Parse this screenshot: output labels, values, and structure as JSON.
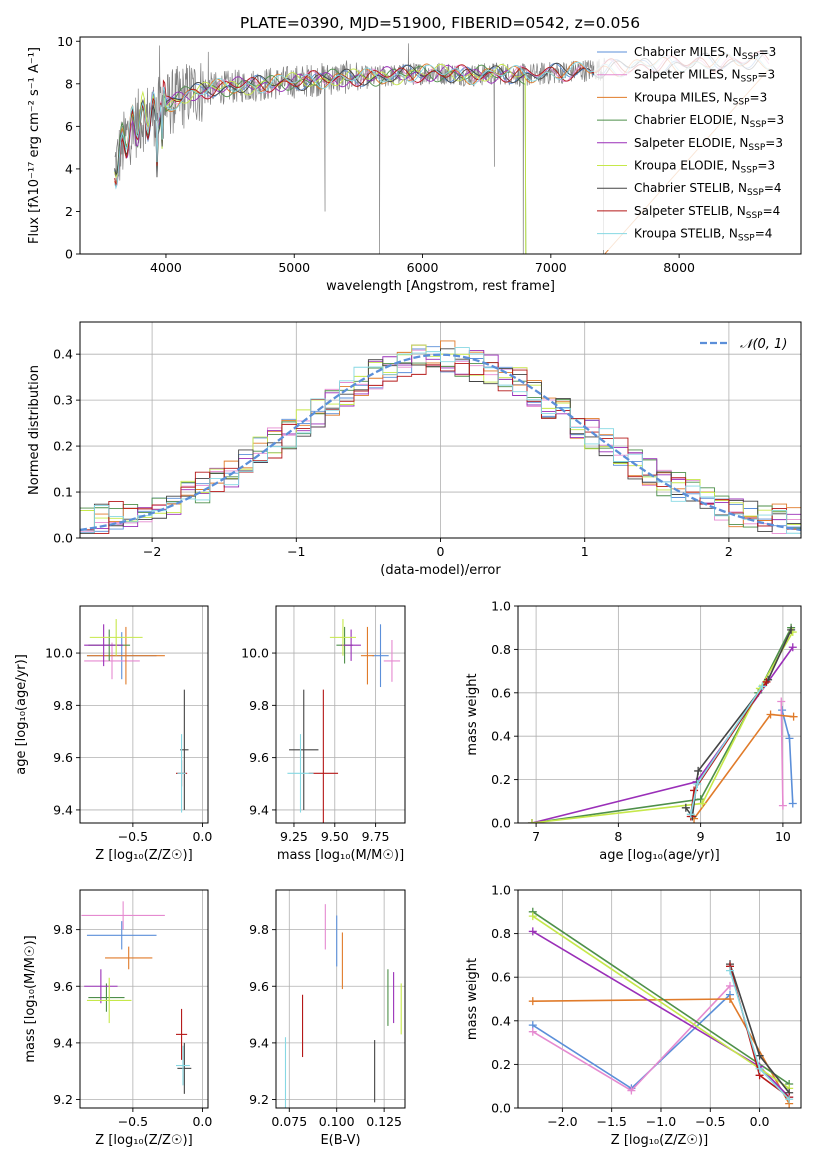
{
  "title": "PLATE=0390, MJD=51900, FIBERID=0542, z=0.056",
  "colors": {
    "Chabrier MILES": "#5b8fd9",
    "Salpeter MILES": "#e58ad0",
    "Kroupa MILES": "#e07b2a",
    "Chabrier ELODIE": "#4e8f4a",
    "Salpeter ELODIE": "#9a2fb8",
    "Kroupa ELODIE": "#c6e84a",
    "Chabrier STELIB": "#444444",
    "Salpeter STELIB": "#b51818",
    "Kroupa STELIB": "#86d8e3",
    "normal": "#5b8fd9"
  },
  "chart_data": [
    {
      "id": "spectrum",
      "type": "line",
      "xlabel": "wavelength [Angstrom, rest frame]",
      "ylabel": "Flux [fλ10⁻¹⁷ erg cm⁻² s⁻¹ A⁻¹]",
      "xlim": [
        3330,
        8950
      ],
      "ylim": [
        0,
        10.2
      ],
      "xticks": [
        4000,
        5000,
        6000,
        7000,
        8000
      ],
      "yticks": [
        0,
        2,
        4,
        6,
        8,
        10
      ],
      "legend": "top-right",
      "legend_entries": [
        {
          "series": "Chabrier MILES",
          "label": "Chabrier MILES, N",
          "sub": "SSP",
          "rest": "=3"
        },
        {
          "series": "Salpeter MILES",
          "label": "Salpeter MILES, N",
          "sub": "SSP",
          "rest": "=3"
        },
        {
          "series": "Kroupa MILES",
          "label": "Kroupa MILES, N",
          "sub": "SSP",
          "rest": "=3"
        },
        {
          "series": "Chabrier ELODIE",
          "label": "Chabrier ELODIE, N",
          "sub": "SSP",
          "rest": "=3"
        },
        {
          "series": "Salpeter ELODIE",
          "label": "Salpeter ELODIE, N",
          "sub": "SSP",
          "rest": "=3"
        },
        {
          "series": "Kroupa ELODIE",
          "label": "Kroupa ELODIE, N",
          "sub": "SSP",
          "rest": "=3"
        },
        {
          "series": "Chabrier STELIB",
          "label": "Chabrier STELIB, N",
          "sub": "SSP",
          "rest": "=4"
        },
        {
          "series": "Salpeter STELIB",
          "label": "Salpeter STELIB, N",
          "sub": "SSP",
          "rest": "=4"
        },
        {
          "series": "Kroupa STELIB",
          "label": "Kroupa STELIB, N",
          "sub": "SSP",
          "rest": "=4"
        }
      ],
      "data_anchor": {
        "x": [
          3600,
          3700,
          3800,
          3900,
          4000,
          4100,
          4200,
          4400,
          4600,
          4800,
          5000,
          5200,
          5400,
          5600,
          5800,
          6000,
          6200,
          6400,
          6600,
          6800,
          7000,
          7200,
          7400,
          7600,
          7800,
          8000,
          8200,
          8400,
          8600,
          8800
        ],
        "y": [
          4.1,
          5.6,
          6.3,
          6.6,
          7.0,
          7.3,
          7.6,
          7.8,
          7.9,
          8.0,
          8.1,
          8.2,
          8.3,
          8.3,
          8.4,
          8.5,
          8.5,
          8.4,
          8.5,
          8.4,
          8.5,
          8.6,
          8.7,
          8.8,
          8.9,
          8.9,
          9.0,
          9.0,
          9.1,
          9.1
        ]
      }
    },
    {
      "id": "residuals",
      "type": "line",
      "xlabel": "(data-model)/error",
      "ylabel": "Normed distribution",
      "xlim": [
        -2.5,
        2.5
      ],
      "ylim": [
        0,
        0.47
      ],
      "xticks": [
        -2,
        -1,
        0,
        1,
        2
      ],
      "yticks": [
        0.0,
        0.1,
        0.2,
        0.3,
        0.4
      ],
      "grid": true,
      "legend": "top-right",
      "legend_label": "𝒩(0, 1)",
      "bin_width": 0.1,
      "histogram_envelope": {
        "x": [
          -2.5,
          -2.0,
          -1.5,
          -1.0,
          -0.5,
          0.0,
          0.5,
          1.0,
          1.5,
          2.0,
          2.5
        ],
        "y": [
          0.03,
          0.06,
          0.13,
          0.24,
          0.35,
          0.4,
          0.35,
          0.24,
          0.13,
          0.06,
          0.03
        ]
      }
    },
    {
      "id": "age-vs-Z",
      "type": "scatter",
      "xlabel": "Z [log₁₀(Z/Z☉)]",
      "ylabel": "age  [log₁₀(age/yr)]",
      "xlim": [
        -0.88,
        0.04
      ],
      "ylim": [
        9.35,
        10.18
      ],
      "xticks": [
        -0.5,
        0.0
      ],
      "yticks": [
        9.4,
        9.6,
        9.8,
        10.0
      ],
      "grid": true,
      "points": [
        {
          "series": "Chabrier MILES",
          "x": -0.58,
          "xerr": 0.25,
          "y": 9.99,
          "yerr": 0.09
        },
        {
          "series": "Salpeter MILES",
          "x": -0.65,
          "xerr": 0.2,
          "y": 9.97,
          "yerr": 0.07
        },
        {
          "series": "Kroupa MILES",
          "x": -0.55,
          "xerr": 0.28,
          "y": 9.99,
          "yerr": 0.11
        },
        {
          "series": "Chabrier ELODIE",
          "x": -0.67,
          "xerr": 0.15,
          "y": 10.03,
          "yerr": 0.06
        },
        {
          "series": "Salpeter ELODIE",
          "x": -0.71,
          "xerr": 0.14,
          "y": 10.03,
          "yerr": 0.08
        },
        {
          "series": "Kroupa ELODIE",
          "x": -0.62,
          "xerr": 0.19,
          "y": 10.06,
          "yerr": 0.07
        },
        {
          "series": "Chabrier STELIB",
          "x": -0.13,
          "xerr": 0.03,
          "y": 9.63,
          "yerr": 0.23
        },
        {
          "series": "Salpeter STELIB",
          "x": -0.15,
          "xerr": 0.04,
          "y": 9.54,
          "yerr": 0.05
        },
        {
          "series": "Kroupa STELIB",
          "x": -0.15,
          "xerr": 0.03,
          "y": 9.54,
          "yerr": 0.15
        }
      ]
    },
    {
      "id": "age-vs-mass",
      "type": "scatter",
      "xlabel": "mass [log₁₀(M/M☉)]",
      "ylabel": "",
      "xlim": [
        9.14,
        9.93
      ],
      "ylim": [
        9.35,
        10.18
      ],
      "xticks": [
        9.25,
        9.5,
        9.75
      ],
      "yticks": [
        9.4,
        9.6,
        9.8,
        10.0
      ],
      "grid": true,
      "points": [
        {
          "series": "Chabrier MILES",
          "x": 9.78,
          "xerr": 0.05,
          "y": 9.99,
          "yerr": 0.12
        },
        {
          "series": "Salpeter MILES",
          "x": 9.85,
          "xerr": 0.05,
          "y": 9.97,
          "yerr": 0.08
        },
        {
          "series": "Kroupa MILES",
          "x": 9.7,
          "xerr": 0.04,
          "y": 9.99,
          "yerr": 0.11
        },
        {
          "series": "Chabrier ELODIE",
          "x": 9.56,
          "xerr": 0.05,
          "y": 10.03,
          "yerr": 0.07
        },
        {
          "series": "Salpeter ELODIE",
          "x": 9.6,
          "xerr": 0.06,
          "y": 10.03,
          "yerr": 0.06
        },
        {
          "series": "Kroupa ELODIE",
          "x": 9.55,
          "xerr": 0.08,
          "y": 10.06,
          "yerr": 0.07
        },
        {
          "series": "Chabrier STELIB",
          "x": 9.31,
          "xerr": 0.09,
          "y": 9.63,
          "yerr": 0.23
        },
        {
          "series": "Salpeter STELIB",
          "x": 9.43,
          "xerr": 0.09,
          "y": 9.54,
          "yerr": 0.32
        },
        {
          "series": "Kroupa STELIB",
          "x": 9.29,
          "xerr": 0.08,
          "y": 9.54,
          "yerr": 0.15
        }
      ]
    },
    {
      "id": "mass-weight-vs-age",
      "type": "line",
      "xlabel": "age  [log₁₀(age/yr)]",
      "ylabel": "mass weight",
      "xlim": [
        6.78,
        10.22
      ],
      "ylim": [
        0.0,
        1.0
      ],
      "xticks": [
        7,
        8,
        9,
        10
      ],
      "yticks": [
        0.0,
        0.2,
        0.4,
        0.6,
        0.8,
        1.0
      ],
      "grid": true,
      "series": [
        {
          "name": "Chabrier MILES",
          "x": [
            10.12,
            10.08,
            9.99
          ],
          "y": [
            0.09,
            0.39,
            0.52
          ]
        },
        {
          "name": "Salpeter MILES",
          "x": [
            10.0,
            9.98
          ],
          "y": [
            0.08,
            0.56
          ]
        },
        {
          "name": "Kroupa MILES",
          "x": [
            8.92,
            9.85,
            10.13
          ],
          "y": [
            0.02,
            0.5,
            0.49
          ]
        },
        {
          "name": "Chabrier ELODIE",
          "x": [
            6.95,
            9.0,
            9.7,
            10.1
          ],
          "y": [
            0.0,
            0.11,
            0.6,
            0.9
          ]
        },
        {
          "name": "Salpeter ELODIE",
          "x": [
            6.95,
            8.95,
            10.12
          ],
          "y": [
            0.0,
            0.19,
            0.81
          ]
        },
        {
          "name": "Kroupa ELODIE",
          "x": [
            6.95,
            9.02,
            9.72,
            10.12
          ],
          "y": [
            0.0,
            0.09,
            0.62,
            0.88
          ]
        },
        {
          "name": "Chabrier STELIB",
          "x": [
            8.82,
            8.9,
            8.97,
            9.82,
            10.1
          ],
          "y": [
            0.07,
            0.03,
            0.24,
            0.66,
            0.89
          ]
        },
        {
          "name": "Salpeter STELIB",
          "x": [
            8.88,
            8.92,
            9.8
          ],
          "y": [
            0.03,
            0.15,
            0.65
          ]
        },
        {
          "name": "Kroupa STELIB",
          "x": [
            8.88,
            8.96,
            9.75
          ],
          "y": [
            0.04,
            0.18,
            0.63
          ]
        }
      ]
    },
    {
      "id": "mass-vs-Z",
      "type": "scatter",
      "xlabel": "Z [log₁₀(Z/Z☉)]",
      "ylabel": "mass [log₁₀(M/M☉)]",
      "xlim": [
        -0.88,
        0.04
      ],
      "ylim": [
        9.17,
        9.94
      ],
      "xticks": [
        -0.5,
        0.0
      ],
      "yticks": [
        9.2,
        9.4,
        9.6,
        9.8
      ],
      "grid": true,
      "points": [
        {
          "series": "Chabrier MILES",
          "x": -0.58,
          "xerr": 0.25,
          "y": 9.78,
          "yerr": 0.05
        },
        {
          "series": "Salpeter MILES",
          "x": -0.57,
          "xerr": 0.3,
          "y": 9.85,
          "yerr": 0.05
        },
        {
          "series": "Kroupa MILES",
          "x": -0.53,
          "xerr": 0.17,
          "y": 9.7,
          "yerr": 0.04
        },
        {
          "series": "Chabrier ELODIE",
          "x": -0.69,
          "xerr": 0.13,
          "y": 9.56,
          "yerr": 0.05
        },
        {
          "series": "Salpeter ELODIE",
          "x": -0.73,
          "xerr": 0.12,
          "y": 9.6,
          "yerr": 0.06
        },
        {
          "series": "Kroupa ELODIE",
          "x": -0.67,
          "xerr": 0.16,
          "y": 9.55,
          "yerr": 0.08
        },
        {
          "series": "Chabrier STELIB",
          "x": -0.13,
          "xerr": 0.05,
          "y": 9.31,
          "yerr": 0.09
        },
        {
          "series": "Salpeter STELIB",
          "x": -0.15,
          "xerr": 0.04,
          "y": 9.43,
          "yerr": 0.09
        },
        {
          "series": "Kroupa STELIB",
          "x": -0.14,
          "xerr": 0.05,
          "y": 9.32,
          "yerr": 0.07
        }
      ]
    },
    {
      "id": "mass-vs-ebv",
      "type": "scatter",
      "xlabel": "E(B-V)",
      "ylabel": "",
      "xlim": [
        0.068,
        0.136
      ],
      "ylim": [
        9.17,
        9.94
      ],
      "xticks": [
        0.075,
        0.1,
        0.125
      ],
      "yticks": [
        9.2,
        9.4,
        9.6,
        9.8
      ],
      "grid": true,
      "points": [
        {
          "series": "Chabrier MILES",
          "x": 0.1,
          "y": 9.76,
          "yerr": 0.09
        },
        {
          "series": "Salpeter MILES",
          "x": 0.094,
          "y": 9.81,
          "yerr": 0.08
        },
        {
          "series": "Kroupa MILES",
          "x": 0.103,
          "y": 9.69,
          "yerr": 0.1
        },
        {
          "series": "Chabrier ELODIE",
          "x": 0.127,
          "y": 9.56,
          "yerr": 0.1
        },
        {
          "series": "Salpeter ELODIE",
          "x": 0.13,
          "y": 9.56,
          "yerr": 0.09
        },
        {
          "series": "Kroupa ELODIE",
          "x": 0.134,
          "y": 9.52,
          "yerr": 0.09
        },
        {
          "series": "Chabrier STELIB",
          "x": 0.12,
          "y": 9.3,
          "yerr": 0.11
        },
        {
          "series": "Salpeter STELIB",
          "x": 0.082,
          "y": 9.46,
          "yerr": 0.11
        },
        {
          "series": "Kroupa STELIB",
          "x": 0.073,
          "y": 9.27,
          "yerr": 0.15
        }
      ]
    },
    {
      "id": "mass-weight-vs-Z",
      "type": "line",
      "xlabel": "Z [log₁₀(Z/Z☉)]",
      "ylabel": "mass weight",
      "xlim": [
        -2.45,
        0.42
      ],
      "ylim": [
        0.0,
        1.0
      ],
      "xticks": [
        -2.0,
        -1.5,
        -1.0,
        -0.5,
        0.0
      ],
      "yticks": [
        0.0,
        0.2,
        0.4,
        0.6,
        0.8,
        1.0
      ],
      "grid": true,
      "series": [
        {
          "name": "Chabrier MILES",
          "x": [
            -2.3,
            -1.3,
            -0.3
          ],
          "y": [
            0.38,
            0.09,
            0.52
          ]
        },
        {
          "name": "Salpeter MILES",
          "x": [
            -2.3,
            -1.3,
            -0.3
          ],
          "y": [
            0.35,
            0.08,
            0.56
          ]
        },
        {
          "name": "Kroupa MILES",
          "x": [
            -2.3,
            -0.3,
            0.3
          ],
          "y": [
            0.49,
            0.5,
            0.02
          ]
        },
        {
          "name": "Chabrier ELODIE",
          "x": [
            -2.3,
            0.3
          ],
          "y": [
            0.9,
            0.11
          ]
        },
        {
          "name": "Salpeter ELODIE",
          "x": [
            -2.3,
            0.0,
            0.3
          ],
          "y": [
            0.81,
            0.19,
            0.05
          ]
        },
        {
          "name": "Kroupa ELODIE",
          "x": [
            -2.3,
            0.3
          ],
          "y": [
            0.88,
            0.09
          ]
        },
        {
          "name": "Chabrier STELIB",
          "x": [
            -0.3,
            0.0,
            0.3
          ],
          "y": [
            0.66,
            0.24,
            0.07
          ]
        },
        {
          "name": "Salpeter STELIB",
          "x": [
            -0.3,
            0.0,
            0.3
          ],
          "y": [
            0.65,
            0.15,
            0.05
          ]
        },
        {
          "name": "Kroupa STELIB",
          "x": [
            -0.3,
            0.0,
            0.3
          ],
          "y": [
            0.63,
            0.18,
            0.04
          ]
        }
      ]
    }
  ]
}
